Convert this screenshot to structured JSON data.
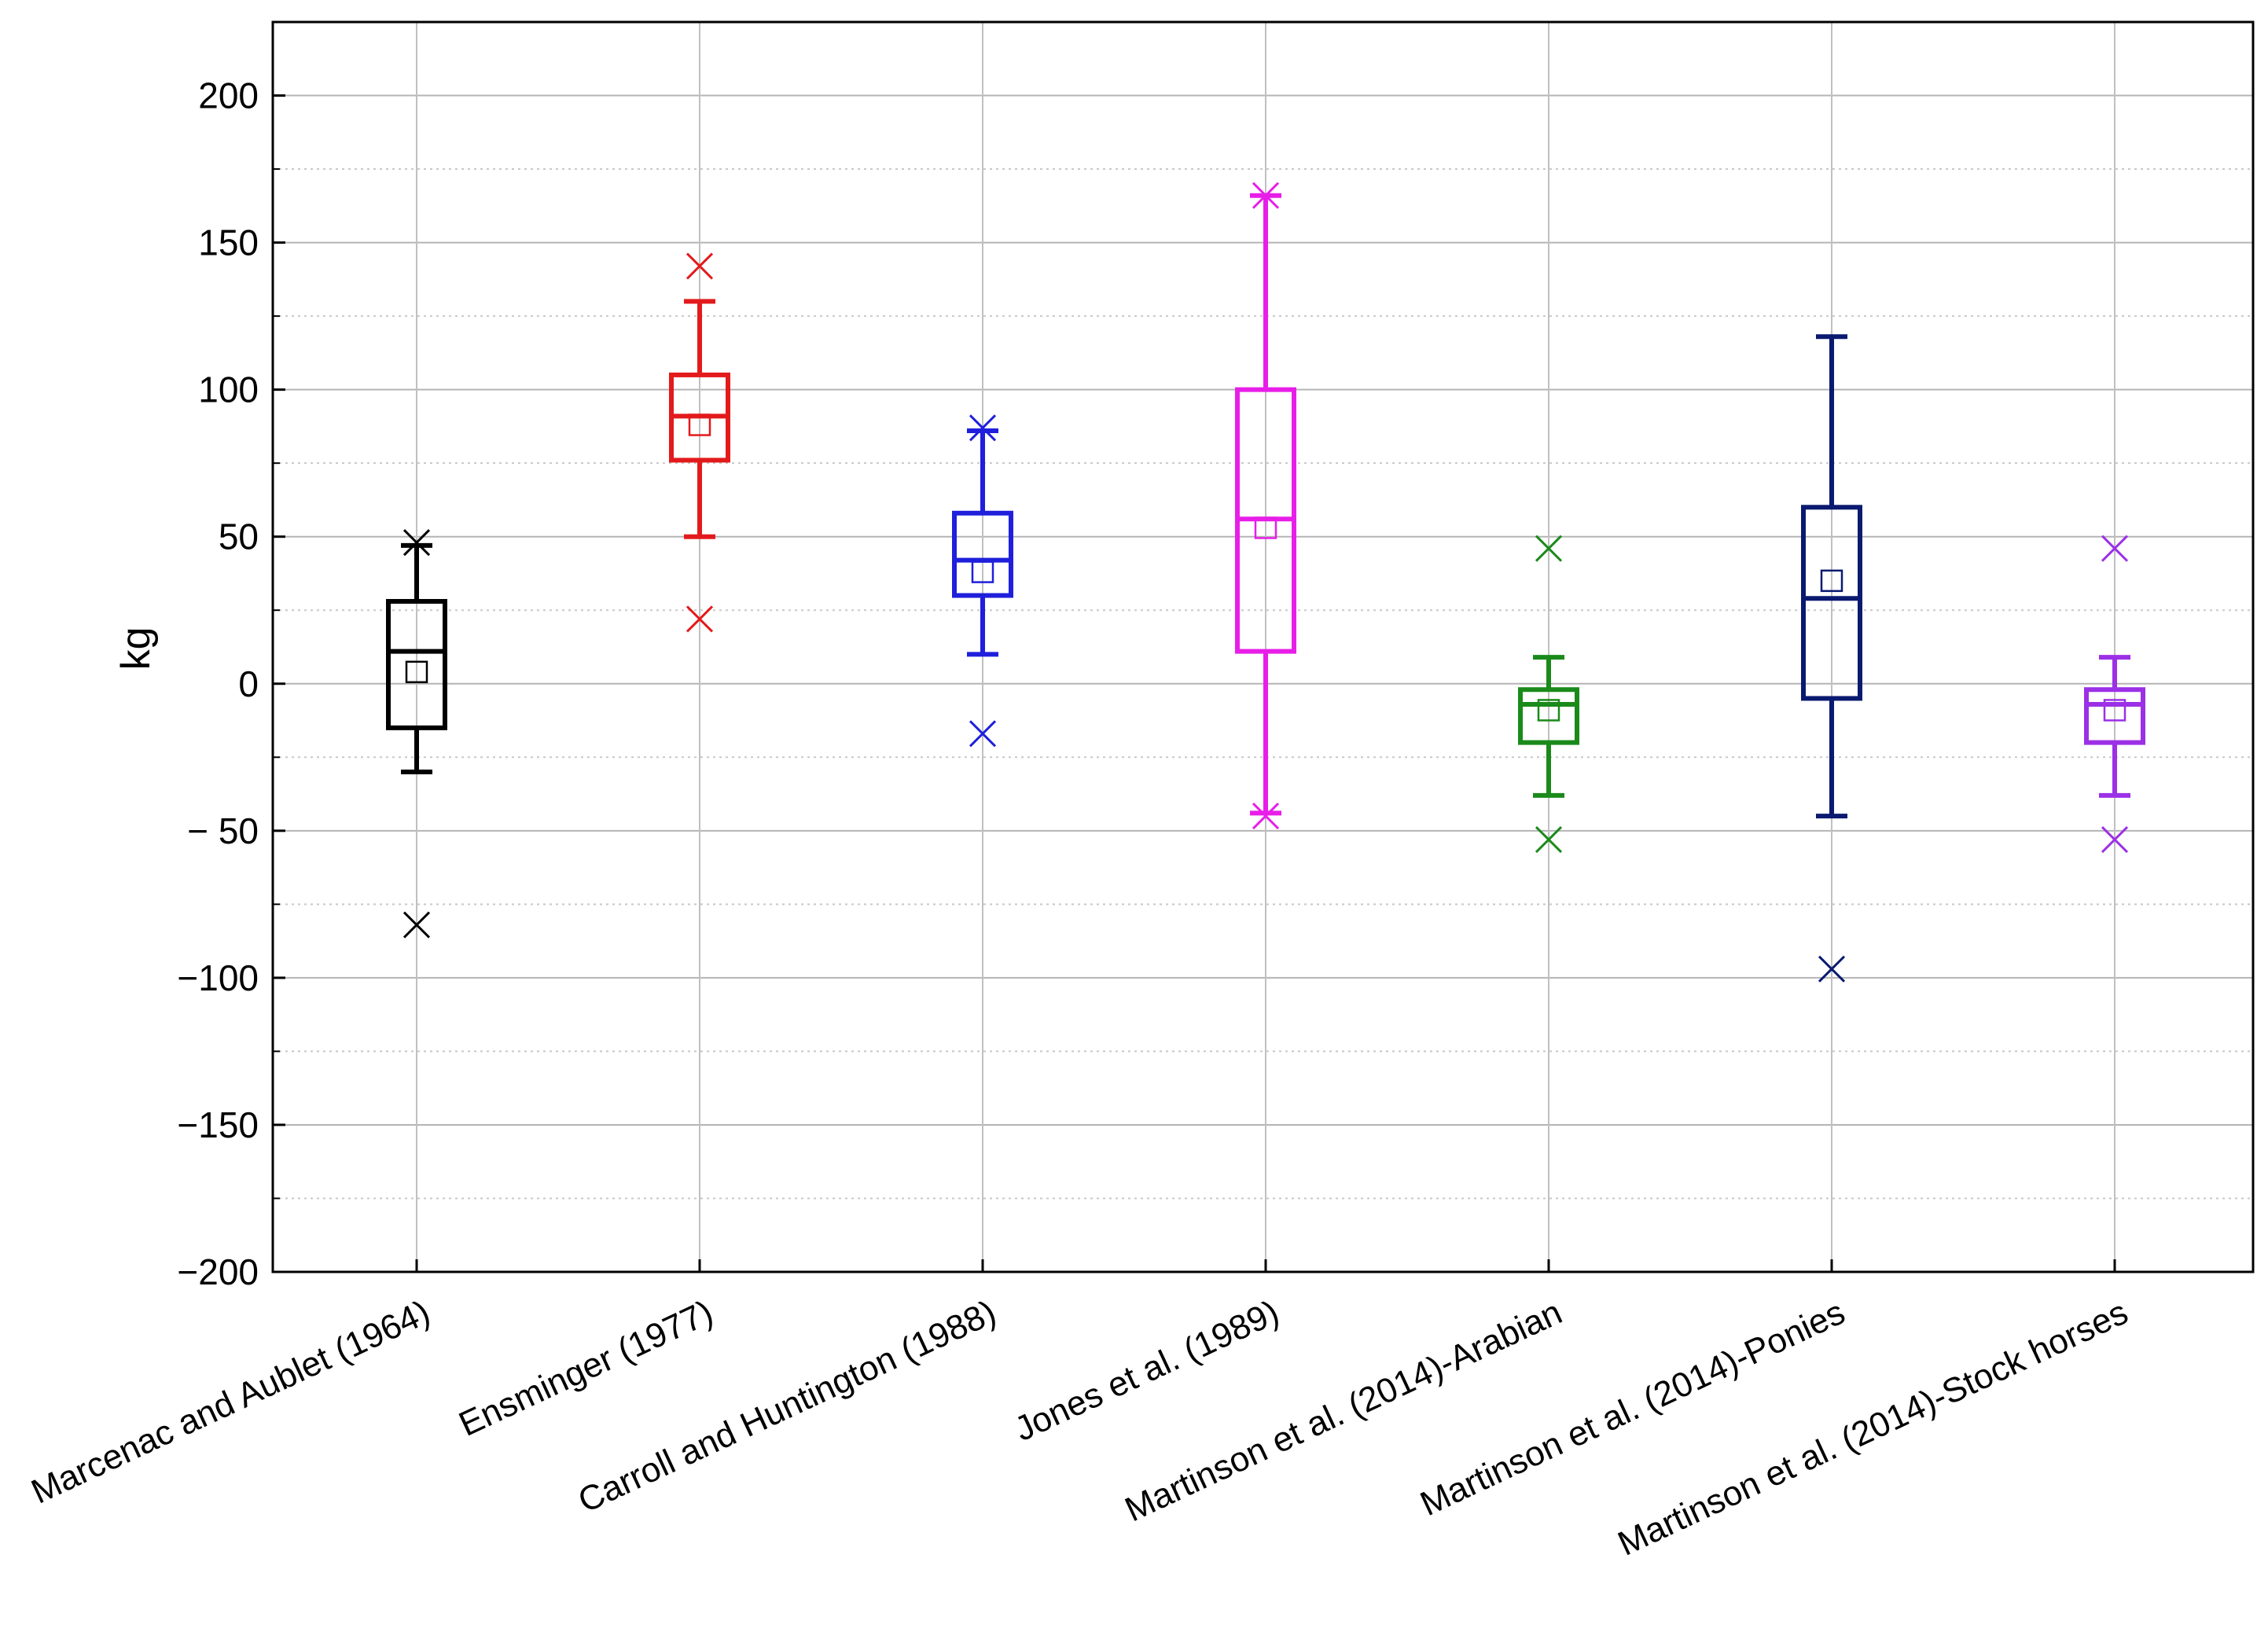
{
  "chart_data": {
    "type": "box",
    "title": "",
    "xlabel": "",
    "ylabel": "kg",
    "ylim": [
      -200,
      225
    ],
    "yticks": [
      200,
      150,
      100,
      50,
      0,
      -50,
      -100,
      -150,
      -200
    ],
    "ytick_labels": [
      "200",
      "150",
      "100",
      "50",
      "0",
      "− 50",
      "−100",
      "−150",
      "−200"
    ],
    "minor_grid_step": 25,
    "grid": true,
    "categories": [
      "Marcenac and Aublet (1964)",
      "Ensminger (1977)",
      "Carroll and Huntington (1988)",
      "Jones et al. (1989)",
      "Martinson et al. (2014)-Arabian",
      "Martinson et al. (2014)-Ponies",
      "Martinson et al. (2014)-Stock horses"
    ],
    "series": [
      {
        "name": "Marcenac and Aublet (1964)",
        "color": "#000000",
        "whisker_low": -30,
        "q1": -15,
        "median": 11,
        "mean": 4,
        "q3": 28,
        "whisker_high": 47,
        "outliers": [
          48,
          -82
        ]
      },
      {
        "name": "Ensminger (1977)",
        "color": "#e31a1c",
        "whisker_low": 50,
        "q1": 76,
        "median": 91,
        "mean": 88,
        "q3": 105,
        "whisker_high": 130,
        "outliers": [
          142,
          22
        ]
      },
      {
        "name": "Carroll and Huntington (1988)",
        "color": "#1f1fdc",
        "whisker_low": 10,
        "q1": 30,
        "median": 42,
        "mean": 38,
        "q3": 58,
        "whisker_high": 86,
        "outliers": [
          87,
          -17
        ]
      },
      {
        "name": "Jones et al. (1989)",
        "color": "#e81ee8",
        "whisker_low": -44,
        "q1": 11,
        "median": 56,
        "mean": 53,
        "q3": 100,
        "whisker_high": 166,
        "outliers": [
          166,
          -45
        ]
      },
      {
        "name": "Martinson et al. (2014)-Arabian",
        "color": "#1a8a1a",
        "whisker_low": -38,
        "q1": -20,
        "median": -7,
        "mean": -9,
        "q3": -2,
        "whisker_high": 9,
        "outliers": [
          46,
          -53
        ]
      },
      {
        "name": "Martinson et al. (2014)-Ponies",
        "color": "#0a1a70",
        "whisker_low": -45,
        "q1": -5,
        "median": 29,
        "mean": 35,
        "q3": 60,
        "whisker_high": 118,
        "outliers": [
          -97
        ]
      },
      {
        "name": "Martinson et al. (2014)-Stock horses",
        "color": "#9b30e6",
        "whisker_low": -38,
        "q1": -20,
        "median": -7,
        "mean": -9,
        "q3": -2,
        "whisker_high": 9,
        "outliers": [
          46,
          -53
        ]
      }
    ]
  }
}
